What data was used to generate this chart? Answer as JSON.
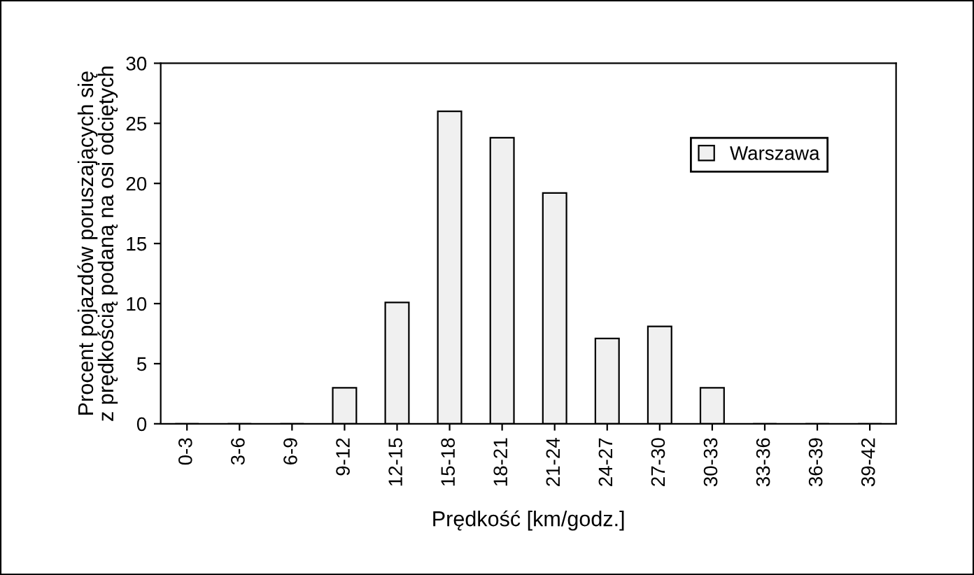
{
  "chart_data": {
    "type": "bar",
    "xlabel": "Prędkość [km/godz.]",
    "ylabel": "Procent pojazdów poruszających się\nz prędkością podaną na osi odciętych",
    "categories": [
      "0-3",
      "3-6",
      "6-9",
      "9-12",
      "12-15",
      "15-18",
      "18-21",
      "21-24",
      "24-27",
      "27-30",
      "30-33",
      "33-36",
      "36-39",
      "39-42"
    ],
    "series": [
      {
        "name": "Warszawa",
        "color": "#f0f0f0",
        "values": [
          0,
          0,
          0,
          3,
          10.1,
          26,
          23.8,
          19.2,
          7.1,
          8.1,
          3,
          0,
          0,
          0
        ]
      }
    ],
    "ylim": [
      0,
      30
    ],
    "yticks": [
      0,
      5,
      10,
      15,
      20,
      25,
      30
    ],
    "grid": false,
    "legend": "top right"
  }
}
